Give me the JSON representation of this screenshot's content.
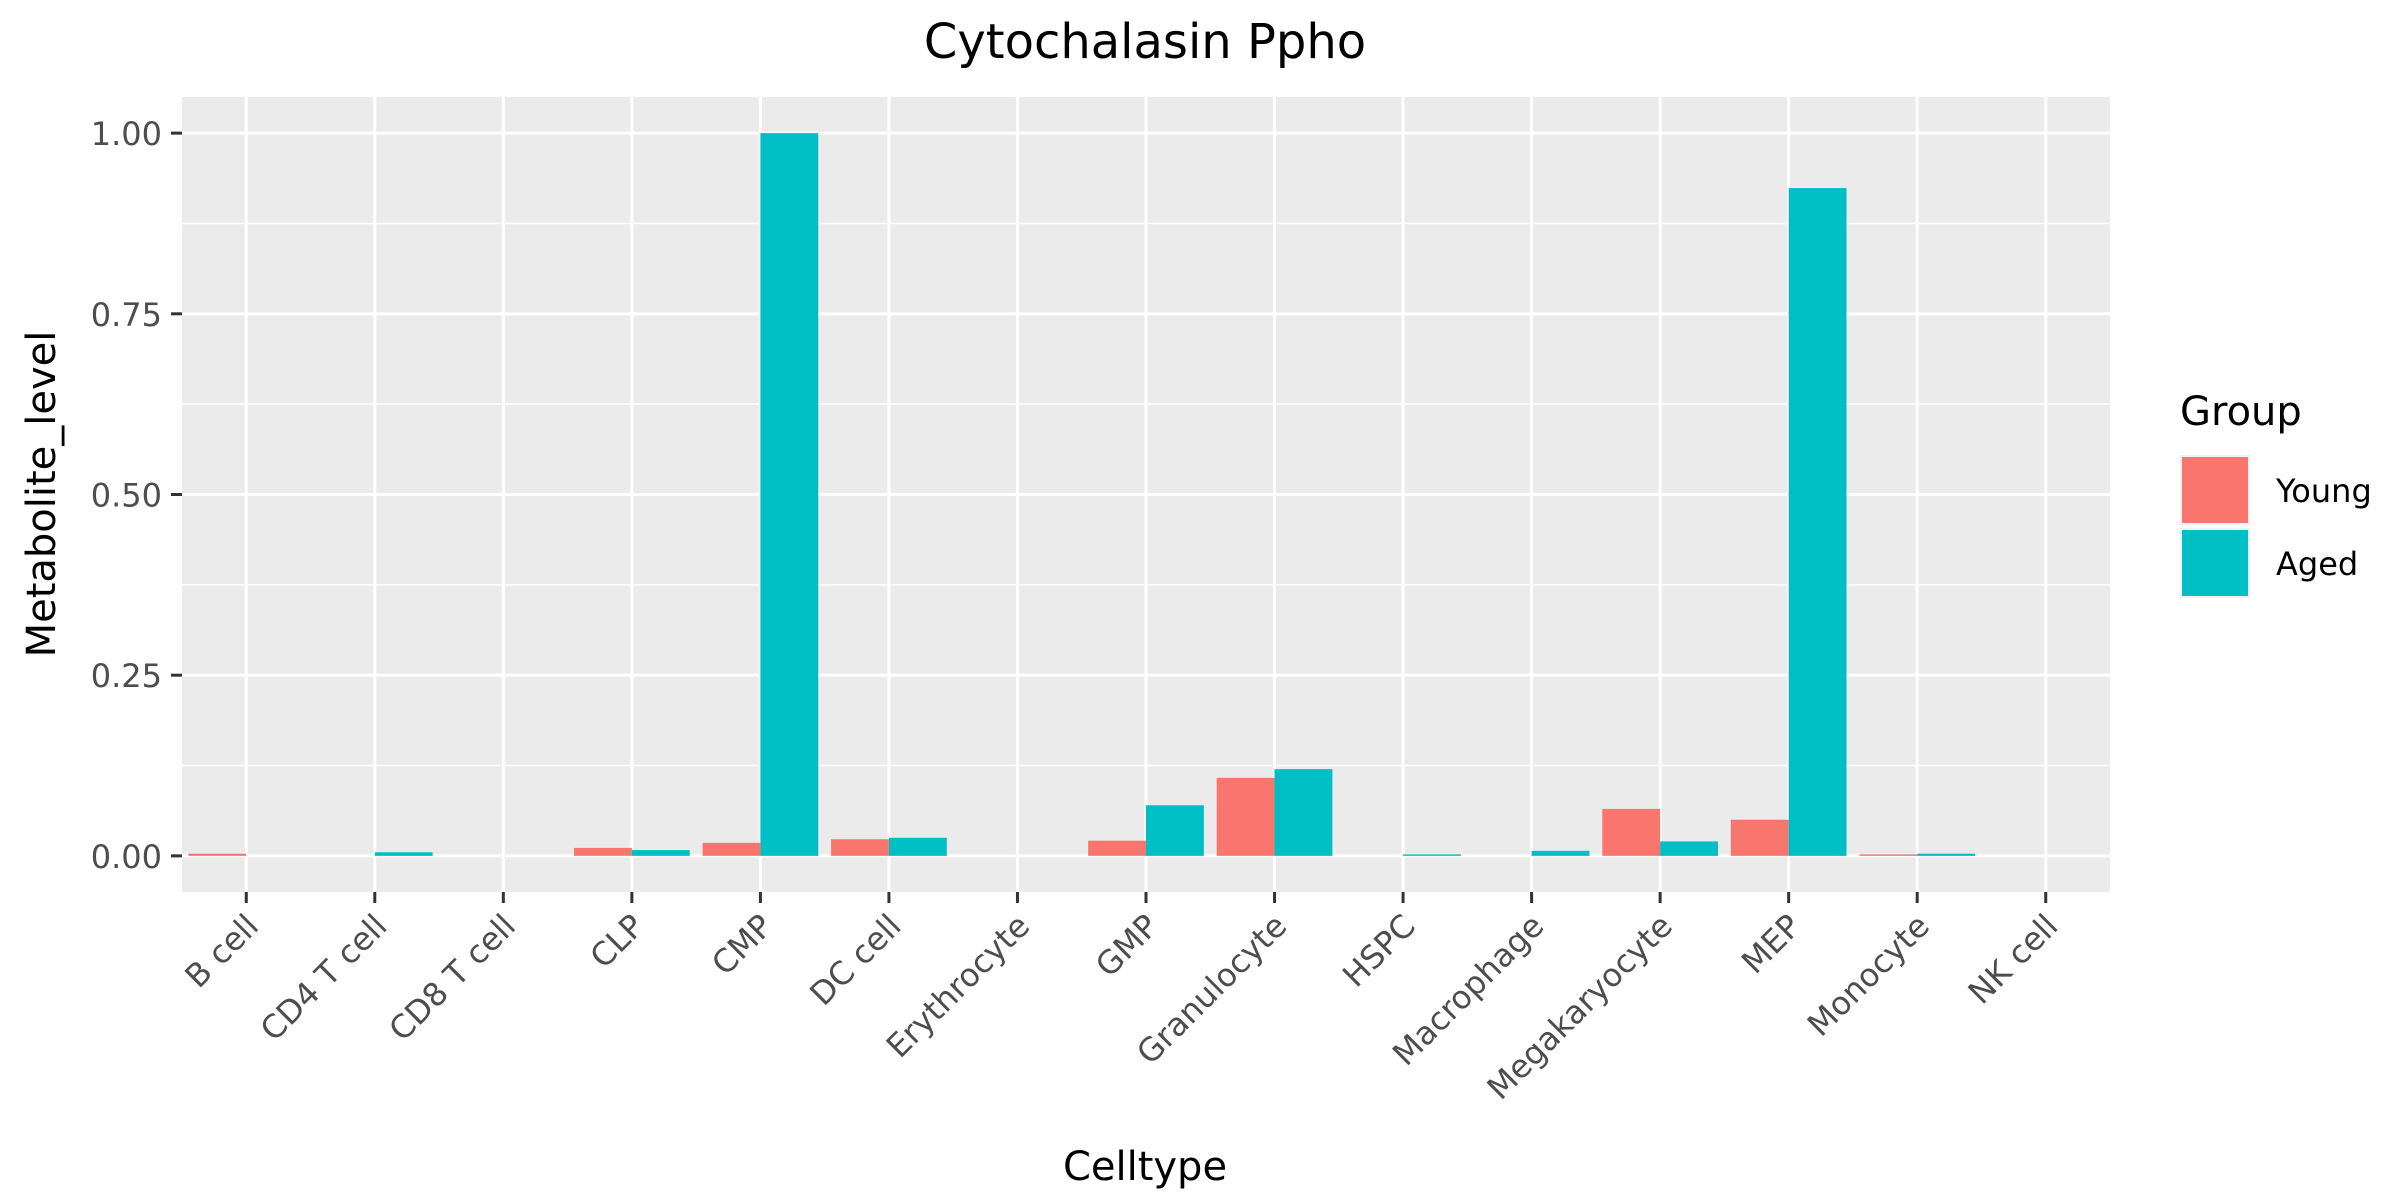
{
  "chart_data": {
    "type": "bar",
    "title": "Cytochalasin Ppho",
    "xlabel": "Celltype",
    "ylabel": "Metabolite_level",
    "categories": [
      "B cell",
      "CD4 T cell",
      "CD8 T cell",
      "CLP",
      "CMP",
      "DC cell",
      "Erythrocyte",
      "GMP",
      "Granulocyte",
      "HSPC",
      "Macrophage",
      "Megakaryocyte",
      "MEP",
      "Monocyte",
      "NK cell"
    ],
    "series": [
      {
        "name": "Young",
        "color": "#F8766D",
        "values": [
          0.003,
          0,
          0,
          0.011,
          0.018,
          0.023,
          0,
          0.021,
          0.108,
          0,
          0,
          0.065,
          0.05,
          0.002,
          0
        ]
      },
      {
        "name": "Aged",
        "color": "#00BFC4",
        "values": [
          0,
          0.005,
          0,
          0.008,
          1.0,
          0.025,
          0,
          0.07,
          0.12,
          0.002,
          0.007,
          0.02,
          0.924,
          0.003,
          0
        ]
      }
    ],
    "ylim": [
      -0.05,
      1.05
    ],
    "yticks": [
      0.0,
      0.25,
      0.5,
      0.75,
      1.0
    ],
    "ytick_labels": [
      "0.00",
      "0.25",
      "0.50",
      "0.75",
      "1.00"
    ],
    "legend": {
      "title": "Group",
      "position": "right"
    },
    "grid": true,
    "panel_color": "#EBEBEB",
    "grid_color": "#FFFFFF"
  }
}
